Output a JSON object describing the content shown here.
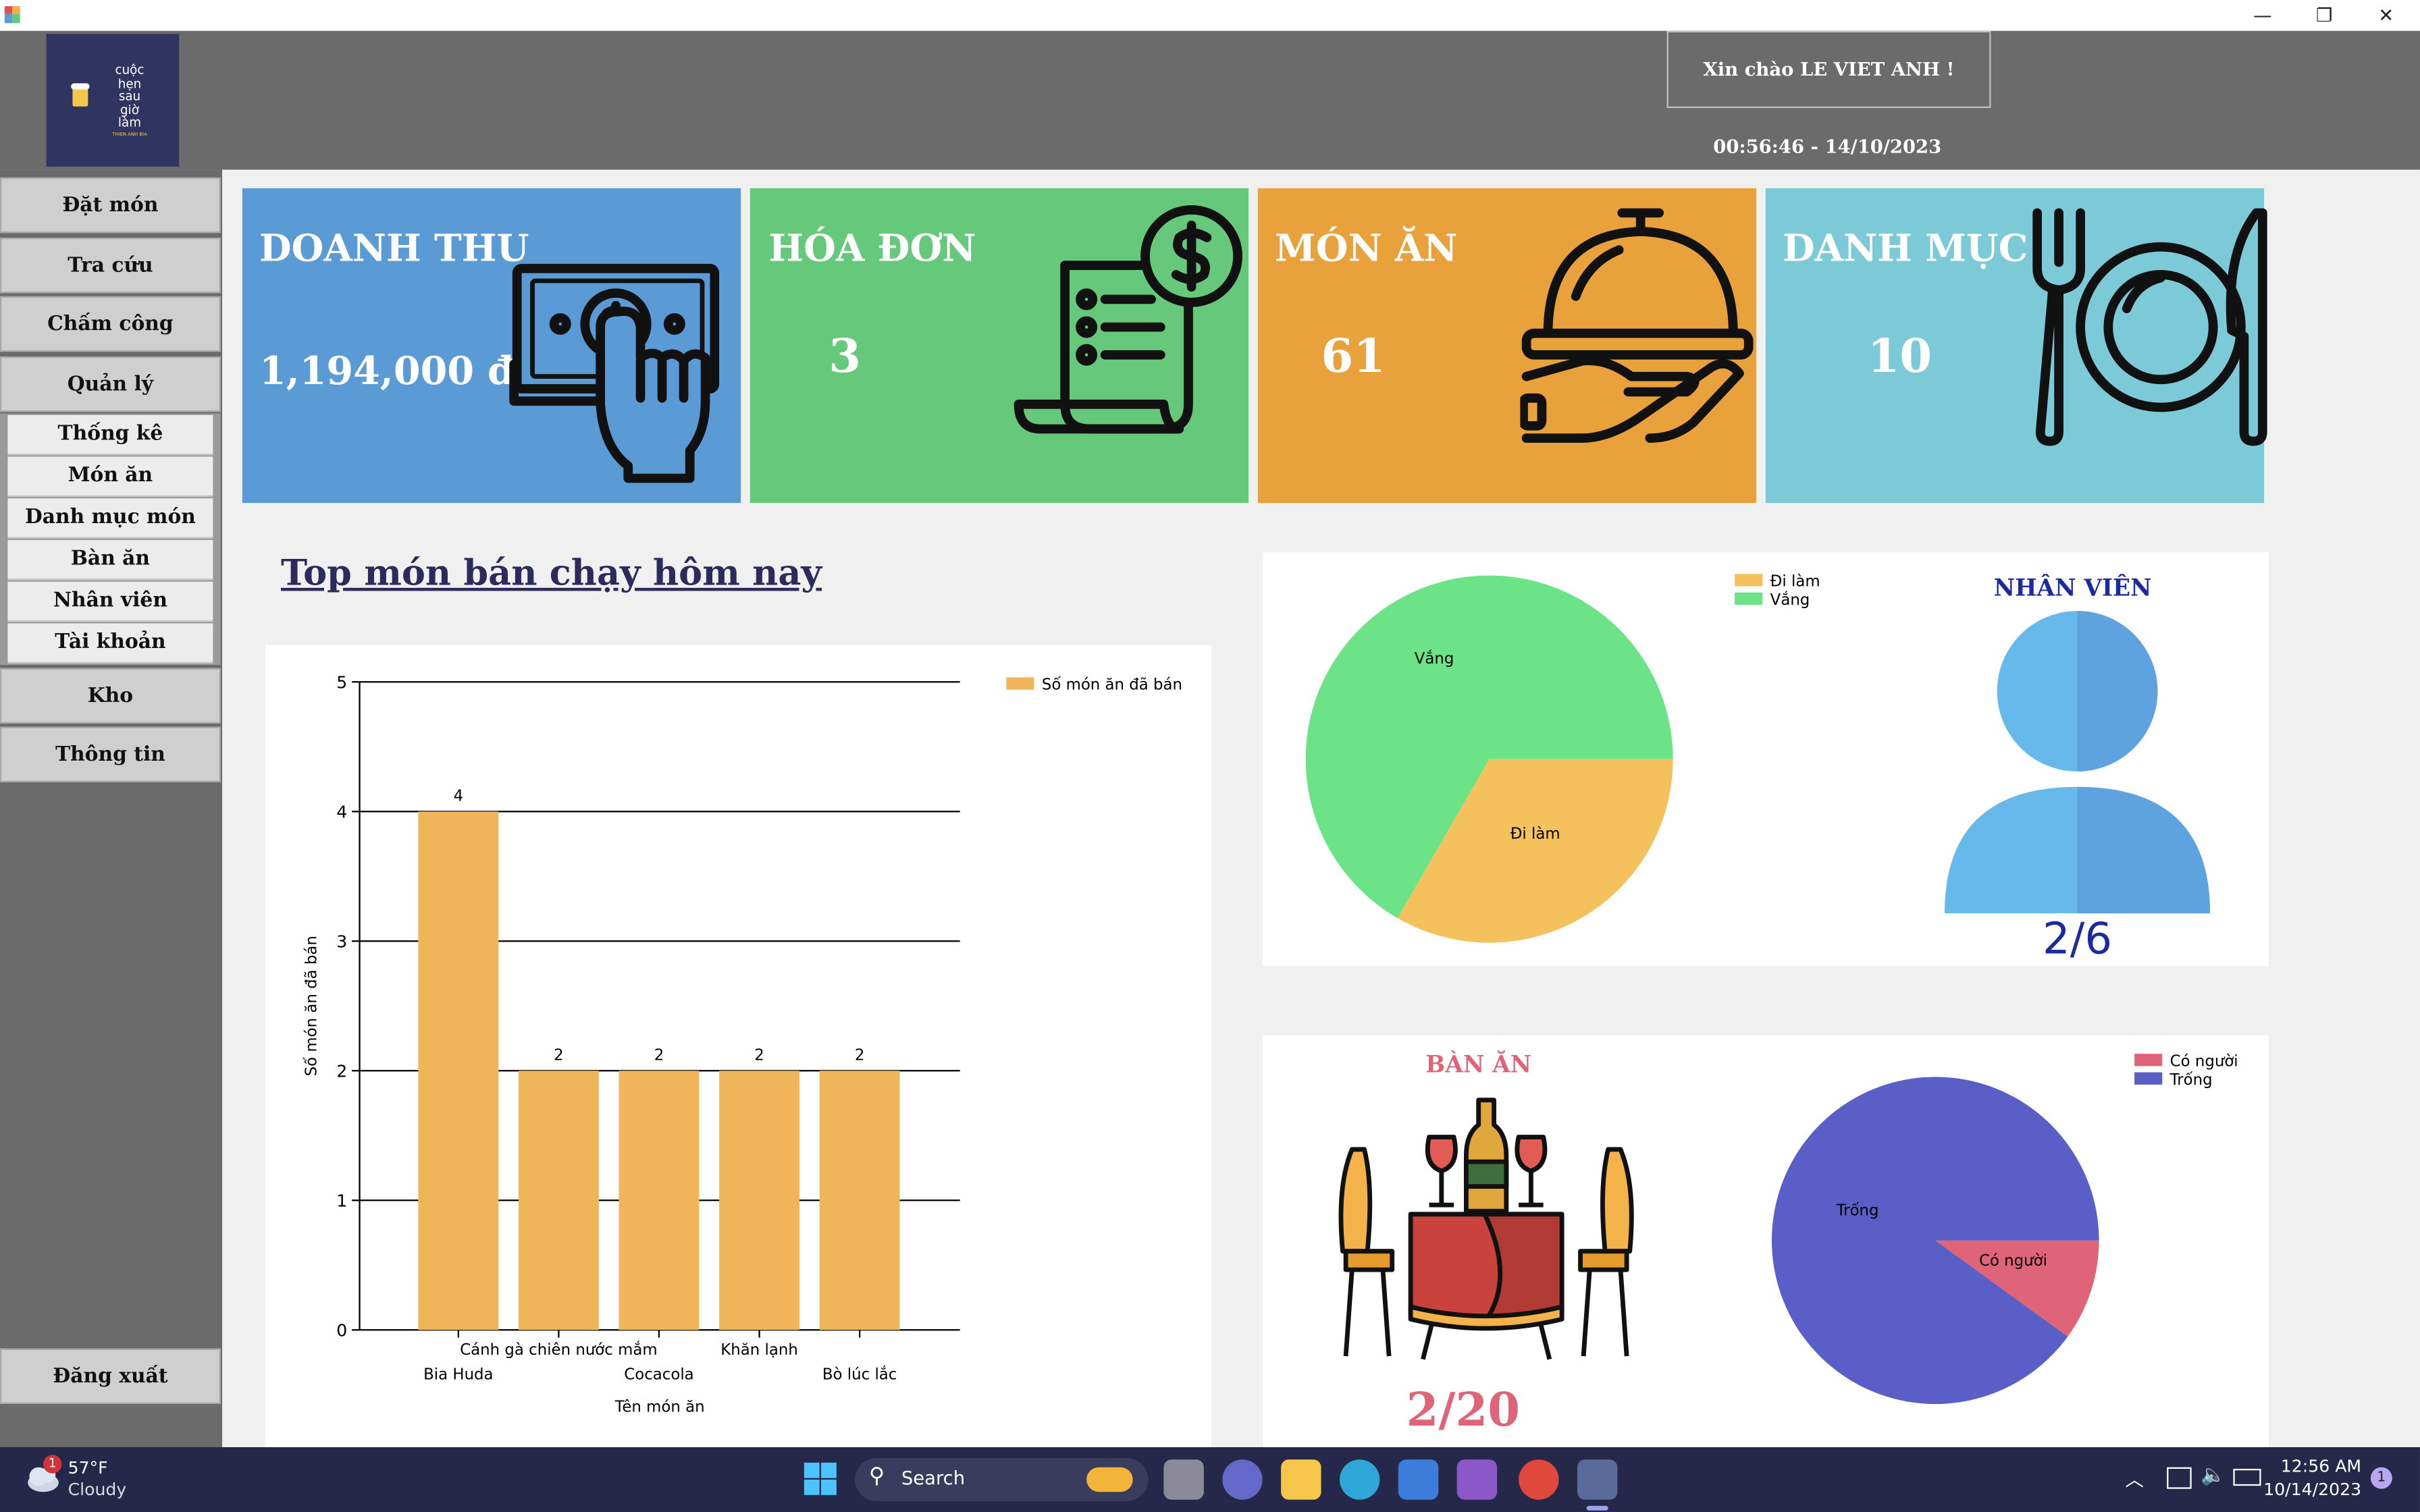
{
  "window": {
    "minimize": "—",
    "restore": "❐",
    "close": "✕"
  },
  "header": {
    "logo_lines": [
      "cuộc",
      "hẹn",
      "sau",
      "giờ",
      "làm"
    ],
    "logo_sub": "THIEN ANH BIA",
    "greeting": "Xin chào LE VIET ANH !",
    "datetime": "00:56:46 - 14/10/2023"
  },
  "sidebar": {
    "items": [
      {
        "label": "Đặt món"
      },
      {
        "label": "Tra cứu"
      },
      {
        "label": "Chấm công"
      },
      {
        "label": "Quản lý"
      }
    ],
    "subitems": [
      {
        "label": "Thống kê"
      },
      {
        "label": "Món ăn"
      },
      {
        "label": "Danh mục món"
      },
      {
        "label": "Bàn ăn"
      },
      {
        "label": "Nhân viên"
      },
      {
        "label": "Tài khoản"
      }
    ],
    "bottom_items": [
      {
        "label": "Kho"
      },
      {
        "label": "Thông tin"
      }
    ],
    "logout": "Đăng xuất"
  },
  "cards": [
    {
      "title": "DOANH THU",
      "value": "1,194,000 đ",
      "color": "#5b9bd5",
      "icon": "money-hand-icon"
    },
    {
      "title": "HÓA ĐƠN",
      "value": "3",
      "color": "#66c87a",
      "icon": "receipt-icon"
    },
    {
      "title": "MÓN ĂN",
      "value": "61",
      "color": "#e9a23b",
      "icon": "cloche-icon"
    },
    {
      "title": "DANH MỤC",
      "value": "10",
      "color": "#7ccad8",
      "icon": "plate-cutlery-icon"
    }
  ],
  "top_dishes": {
    "heading": "Top món bán chạy hôm nay"
  },
  "chart_data": [
    {
      "type": "bar",
      "categories": [
        "Bia Huda",
        "Cánh gà chiên nước mắm",
        "Cocacola",
        "Khăn lạnh",
        "Bò lúc lắc"
      ],
      "series": [
        {
          "name": "Số món ăn đã bán",
          "values": [
            4,
            2,
            2,
            2,
            2
          ],
          "color": "#f0b459"
        }
      ],
      "xlabel": "Tên món ăn",
      "ylabel": "Số món ăn đã bán",
      "ylim": [
        0,
        5
      ],
      "yticks": [
        0,
        1,
        2,
        3,
        4,
        5
      ],
      "grid": true,
      "data_labels": true,
      "legend": "top-right"
    },
    {
      "type": "pie",
      "labels": [
        "Đi làm",
        "Vắng"
      ],
      "values": [
        2,
        4
      ],
      "colors": [
        "#f4c15d",
        "#6be386"
      ],
      "legend": "top-right"
    },
    {
      "type": "pie",
      "labels": [
        "Có người",
        "Trống"
      ],
      "values": [
        2,
        18
      ],
      "colors": [
        "#e06478",
        "#5a5fc8"
      ],
      "legend": "top-right"
    }
  ],
  "staff": {
    "title": "NHÂN VIÊN",
    "ratio": "2/6",
    "icon": "person-icon"
  },
  "tables": {
    "title": "BÀN ĂN",
    "ratio": "2/20",
    "icon": "dining-table-icon"
  },
  "taskbar": {
    "weather_temp": "57°F",
    "weather_desc": "Cloudy",
    "weather_badge": "1",
    "search": "Search",
    "time": "12:56 AM",
    "date": "10/14/2023",
    "notif": "1"
  }
}
